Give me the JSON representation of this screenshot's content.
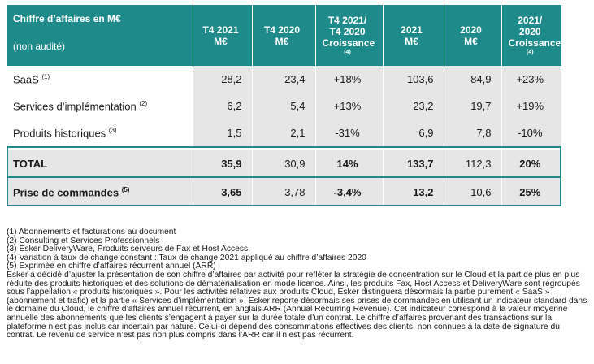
{
  "colors": {
    "header_bg": "#1f8a8a",
    "shade": "#e6e6e6",
    "accent_border": "#1f8a8a"
  },
  "header": {
    "title": "Chiffre d’affaires en M€",
    "subtitle": "(non audité)",
    "cols": [
      {
        "l1": "T4 2021",
        "l2": "M€",
        "l3": ""
      },
      {
        "l1": "T4 2020",
        "l2": "M€",
        "l3": ""
      },
      {
        "l1": "T4 2021/",
        "l2": "T4 2020",
        "l3": "Croissance",
        "fn": "(4)"
      },
      {
        "l1": "2021",
        "l2": "M€",
        "l3": ""
      },
      {
        "l1": "2020",
        "l2": "M€",
        "l3": ""
      },
      {
        "l1": "2021/",
        "l2": "2020",
        "l3": "Croissance",
        "fn": "(4)"
      }
    ]
  },
  "rows": [
    {
      "label": "SaaS",
      "note": "(1)",
      "v": [
        "28,2",
        "23,4",
        "+18%",
        "103,6",
        "84,9",
        "+23%"
      ]
    },
    {
      "label": "Services d’implémentation",
      "note": "(2)",
      "v": [
        "6,2",
        "5,4",
        "+13%",
        "23,2",
        "19,7",
        "+19%"
      ]
    },
    {
      "label": "Produits historiques",
      "note": "(3)",
      "v": [
        "1,5",
        "2,1",
        "-31%",
        "6,9",
        "7,8",
        "-10%"
      ]
    }
  ],
  "totals": [
    {
      "label": "TOTAL",
      "note": "",
      "v": [
        "35,9",
        "30,9",
        "14%",
        "133,7",
        "112,3",
        "20%"
      ]
    },
    {
      "label": "Prise de commandes",
      "note": "(5)",
      "v": [
        "3,65",
        "3,78",
        "-3,4%",
        "13,2",
        "10,6",
        "25%"
      ]
    }
  ],
  "footnotes": [
    "(1) Abonnements et facturations au document",
    "(2) Consulting et Services Professionnels",
    "(3) Esker DeliveryWare, Produits serveurs de Fax et Host Access",
    "(4) Variation à taux de change constant : Taux de change 2021 appliqué au chiffre d’affaires 2020",
    "(5) Exprimée en chiffre d’affaires récurrent annuel (ARR)"
  ],
  "paragraph": "Esker a décidé d’ajuster la présentation de son chiffre d’affaires par activité pour refléter la stratégie de concentration sur le Cloud et la part de plus en plus réduite des produits historiques et des solutions de dématérialisation en mode licence. Ainsi, les produits Fax, Host Access et DeliveryWare sont regroupés sous l’appellation « produits historiques ». Pour les activités relatives aux produits Cloud, Esker distinguera désormais la partie purement « SaaS » (abonnement et trafic) et la partie « Services d’implémentation ». Esker reporte désormais ses prises de commandes en utilisant un indicateur standard dans le domaine du Cloud, le chiffre d’affaires annuel récurrent, en anglais ARR (Annual Recurring Revenue). Cet indicateur correspond à la valeur moyenne annuelle des abonnements que les clients s’engagent à payer sur la durée totale d’un contrat. Le chiffre d’affaires provenant des transactions sur la plateforme n’est pas inclus car incertain par nature. Celui-ci dépend des consommations effectives des clients, non connues à la date de signature du contrat. Le revenu de service n’est pas non plus compris dans l’ARR car il n’est pas récurrent."
}
